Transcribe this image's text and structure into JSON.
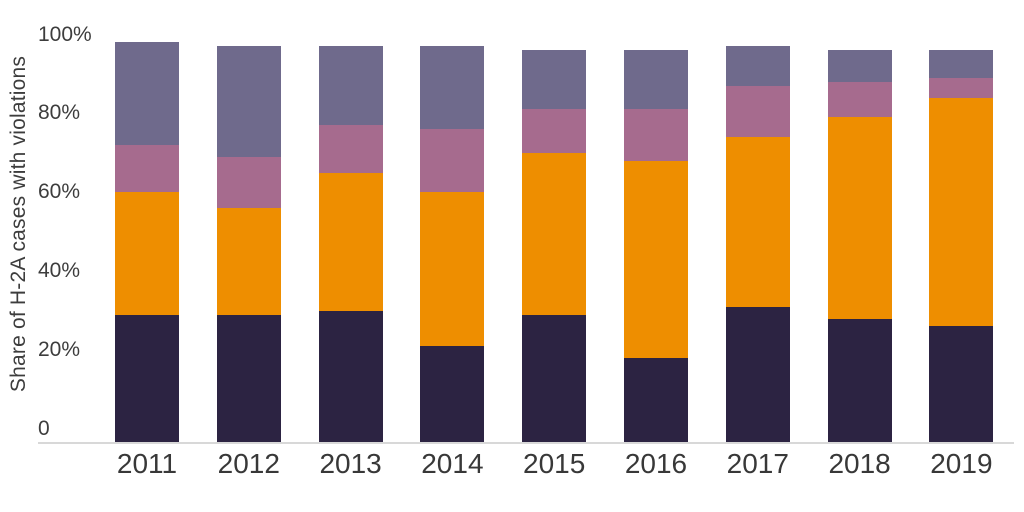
{
  "chart_data": {
    "type": "bar",
    "stacked": true,
    "title": "",
    "ylabel": "Share of H-2A cases with violations",
    "xlabel": "",
    "ylim": [
      0,
      100
    ],
    "grid": false,
    "legend": "none visible",
    "y_tick_labels": [
      "100%",
      "80%",
      "60%",
      "40%",
      "20%",
      "0"
    ],
    "y_tick_values": [
      100,
      80,
      60,
      40,
      20,
      0
    ],
    "categories": [
      "2011",
      "2012",
      "2013",
      "2014",
      "2015",
      "2016",
      "2017",
      "2018",
      "2019"
    ],
    "series": [
      {
        "name": "bottom-segment-dark-navy",
        "color": "#2c2342",
        "values": [
          29,
          29,
          30,
          21,
          29,
          18,
          31,
          28,
          26
        ]
      },
      {
        "name": "second-segment-orange",
        "color": "#ee8e00",
        "values": [
          31,
          27,
          35,
          39,
          41,
          50,
          43,
          51,
          58
        ]
      },
      {
        "name": "third-segment-mauve",
        "color": "#a66b8e",
        "values": [
          12,
          13,
          12,
          16,
          11,
          13,
          13,
          9,
          5
        ]
      },
      {
        "name": "top-segment-slate-purple",
        "color": "#6f6a8c",
        "values": [
          26,
          28,
          20,
          21,
          15,
          15,
          10,
          8,
          7
        ]
      }
    ],
    "stack_totals": [
      98,
      97,
      97,
      97,
      96,
      96,
      97,
      96,
      96
    ],
    "colors": {
      "axis_line": "#d8d8d8",
      "tick_text": "#3d3d3d",
      "year_text": "#383838",
      "background": "#ffffff"
    }
  }
}
